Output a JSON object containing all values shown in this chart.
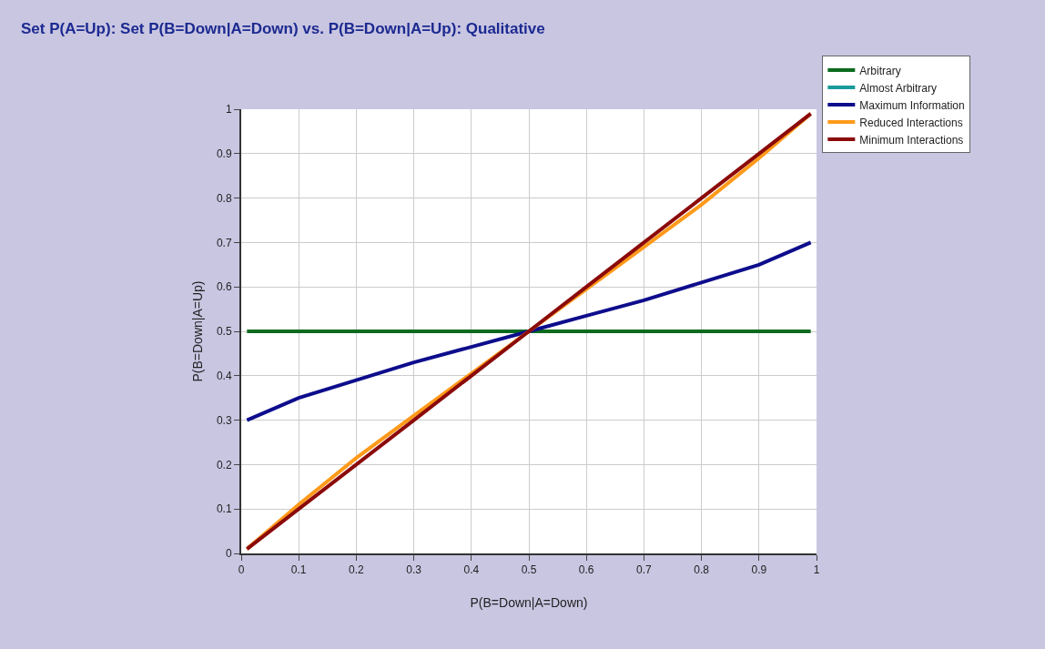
{
  "chart_data": {
    "type": "line",
    "title": "Set P(A=Up): Set P(B=Down|A=Down) vs. P(B=Down|A=Up): Qualitative",
    "xlabel": "P(B=Down|A=Down)",
    "ylabel": "P(B=Down|A=Up)",
    "x": [
      0.01,
      0.1,
      0.2,
      0.3,
      0.4,
      0.5,
      0.6,
      0.7,
      0.8,
      0.9,
      0.99
    ],
    "series": [
      {
        "name": "Arbitrary",
        "color": "#0b6b1e",
        "values": [
          0.5,
          0.5,
          0.5,
          0.5,
          0.5,
          0.5,
          0.5,
          0.5,
          0.5,
          0.5,
          0.5
        ]
      },
      {
        "name": "Almost Arbitrary",
        "color": "#1a9a9a",
        "values": [
          null,
          null,
          null,
          null,
          null,
          null,
          null,
          null,
          null,
          null,
          null
        ]
      },
      {
        "name": "Maximum Information",
        "color": "#0d0d8c",
        "values": [
          0.3,
          0.35,
          0.39,
          0.43,
          0.465,
          0.5,
          0.535,
          0.57,
          0.61,
          0.65,
          0.7
        ]
      },
      {
        "name": "Reduced Interactions",
        "color": "#ff9a1a",
        "values": [
          0.01,
          0.11,
          0.215,
          0.31,
          0.405,
          0.5,
          0.595,
          0.69,
          0.785,
          0.89,
          0.99
        ]
      },
      {
        "name": "Minimum Interactions",
        "color": "#8b0a0a",
        "values": [
          0.01,
          0.1,
          0.2,
          0.3,
          0.4,
          0.5,
          0.6,
          0.7,
          0.8,
          0.9,
          0.99
        ]
      }
    ],
    "xlim": [
      0,
      1
    ],
    "ylim": [
      0,
      1
    ],
    "xticks": [
      0,
      0.1,
      0.2,
      0.3,
      0.4,
      0.5,
      0.6,
      0.7,
      0.8,
      0.9,
      1
    ],
    "yticks": [
      0,
      0.1,
      0.2,
      0.3,
      0.4,
      0.5,
      0.6,
      0.7,
      0.8,
      0.9,
      1
    ],
    "grid": true,
    "legend": "top right",
    "marker": "none",
    "line_style": "solid"
  }
}
